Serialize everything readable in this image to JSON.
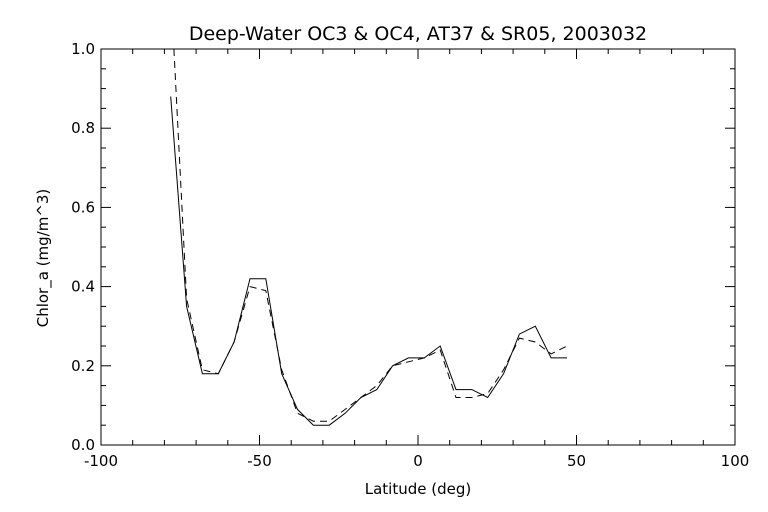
{
  "chart_data": {
    "type": "line",
    "title": "Deep-Water OC3 & OC4, AT37 & SR05, 2003032",
    "xlabel": "Latitude (deg)",
    "ylabel": "Chlor_a (mg/m^3)",
    "xlim": [
      -100,
      100
    ],
    "ylim": [
      0.0,
      1.0
    ],
    "x_ticks": [
      "-100",
      "-50",
      "0",
      "50",
      "100"
    ],
    "y_ticks": [
      "0.0",
      "0.2",
      "0.4",
      "0.6",
      "0.8",
      "1.0"
    ],
    "grid": false,
    "legend": false,
    "series": [
      {
        "style": "solid",
        "x": [
          -78,
          -73,
          -68,
          -63,
          -58,
          -53,
          -48,
          -43,
          -38,
          -33,
          -28,
          -23,
          -18,
          -13,
          -8,
          -3,
          2,
          7,
          12,
          17,
          22,
          27,
          32,
          37,
          42,
          47
        ],
        "y": [
          0.88,
          0.35,
          0.18,
          0.18,
          0.26,
          0.42,
          0.42,
          0.18,
          0.09,
          0.05,
          0.05,
          0.08,
          0.12,
          0.14,
          0.2,
          0.22,
          0.22,
          0.25,
          0.14,
          0.14,
          0.12,
          0.18,
          0.28,
          0.3,
          0.22,
          0.22
        ]
      },
      {
        "style": "dashed",
        "x": [
          -77,
          -73,
          -68,
          -63,
          -58,
          -53,
          -48,
          -43,
          -38,
          -33,
          -28,
          -23,
          -18,
          -13,
          -8,
          -3,
          2,
          7,
          12,
          17,
          22,
          27,
          32,
          37,
          42,
          47
        ],
        "y": [
          1.0,
          0.37,
          0.19,
          0.18,
          0.26,
          0.4,
          0.39,
          0.19,
          0.08,
          0.06,
          0.06,
          0.09,
          0.12,
          0.15,
          0.2,
          0.21,
          0.22,
          0.24,
          0.12,
          0.12,
          0.13,
          0.19,
          0.27,
          0.26,
          0.23,
          0.25
        ]
      }
    ]
  }
}
